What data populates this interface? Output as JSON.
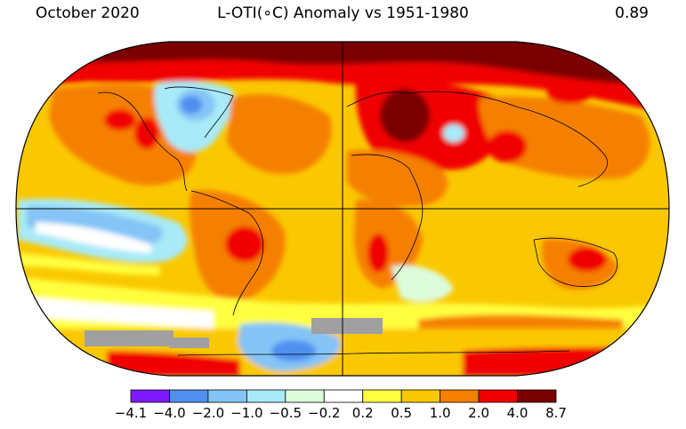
{
  "header": {
    "date": "October 2020",
    "title": "L-OTI(∘C) Anomaly vs 1951-1980",
    "global_mean": "0.89"
  },
  "colorbar": {
    "bins": [
      {
        "color": "#7f1aff"
      },
      {
        "color": "#4f8ff0"
      },
      {
        "color": "#84c4f6"
      },
      {
        "color": "#a8eaf8"
      },
      {
        "color": "#dcfcdc"
      },
      {
        "color": "#ffffff"
      },
      {
        "color": "#ffff40"
      },
      {
        "color": "#fac800"
      },
      {
        "color": "#f58000"
      },
      {
        "color": "#f00000"
      },
      {
        "color": "#7a0000"
      }
    ],
    "tick_labels": [
      "−4.1",
      "−4.0",
      "−2.0",
      "−1.0",
      "−0.5",
      "−0.2",
      "0.2",
      "0.5",
      "1.0",
      "2.0",
      "4.0",
      "8.7"
    ]
  },
  "map": {
    "projection": "Robinson-like (oval)",
    "gridlines": "equator and prime meridian",
    "no_data_color": "#a0a0a0"
  }
}
